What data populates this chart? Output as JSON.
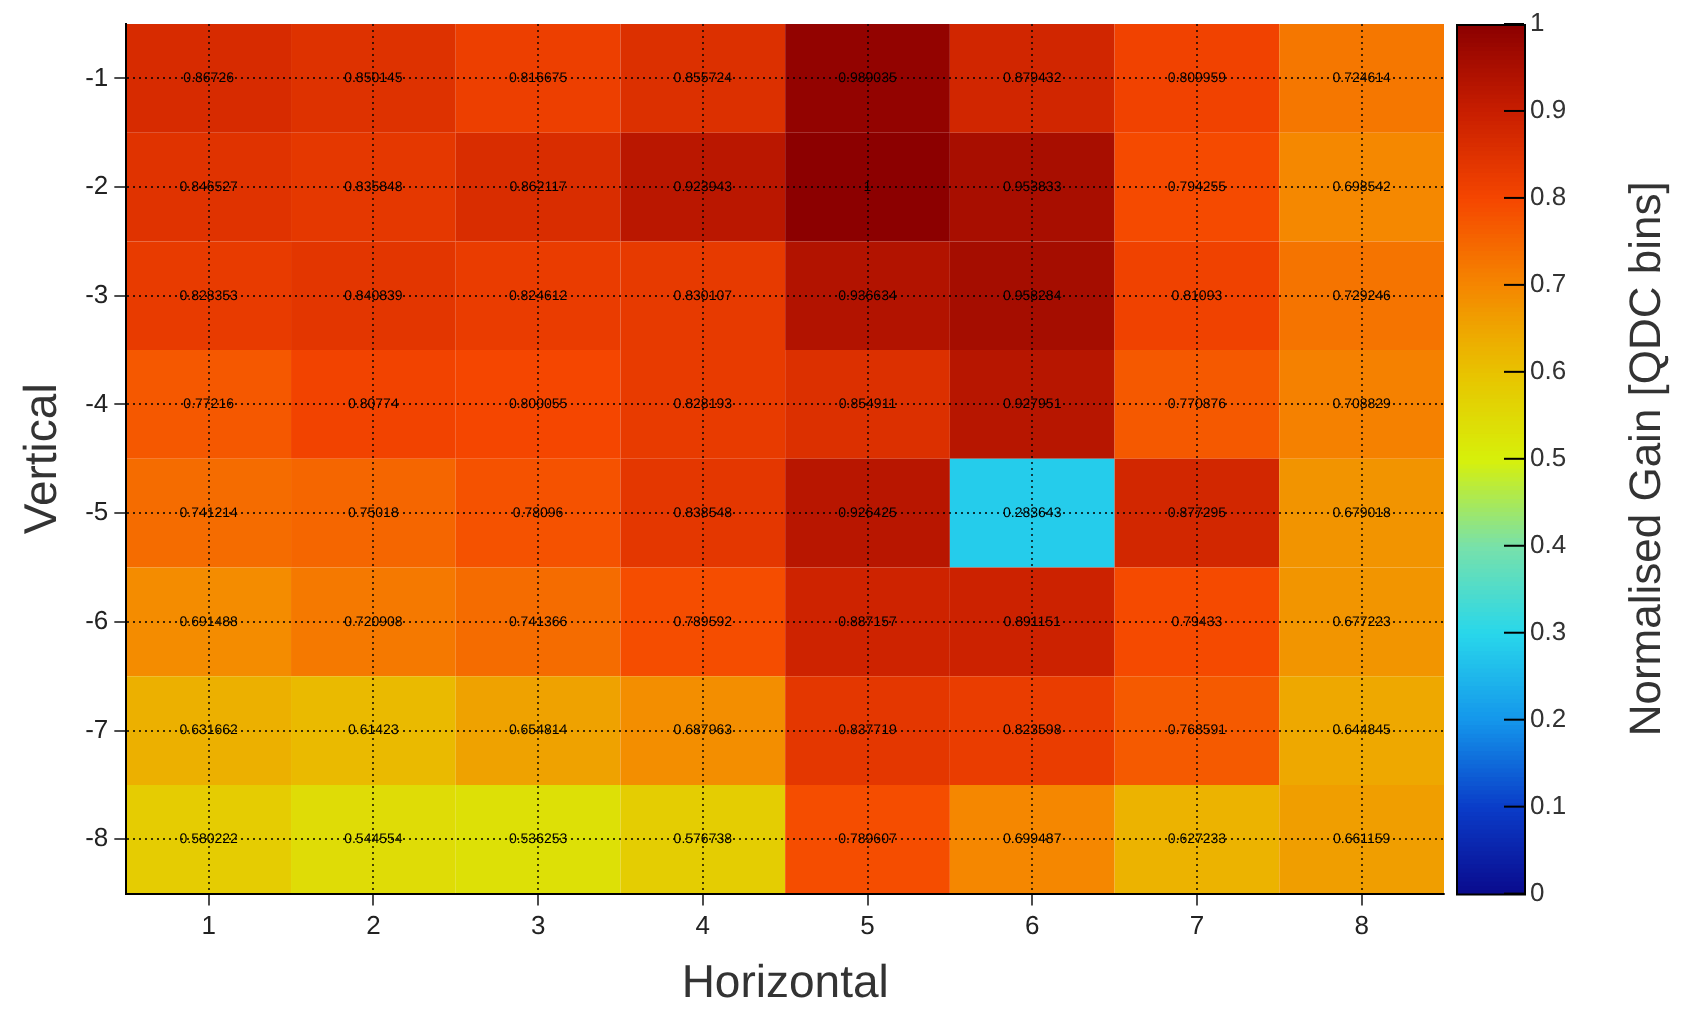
{
  "chart_data": {
    "type": "heatmap",
    "xlabel": "Horizontal",
    "ylabel": "Vertical",
    "clabel": "Normalised Gain [QDC bins]",
    "categories": [
      "1",
      "2",
      "3",
      "4",
      "5",
      "6",
      "7",
      "8"
    ],
    "y_categories": [
      "-1",
      "-2",
      "-3",
      "-4",
      "-5",
      "-6",
      "-7",
      "-8"
    ],
    "cells": [
      [
        0.86726,
        0.850145,
        0.816675,
        0.855724,
        0.989035,
        0.879432,
        0.809959,
        0.724614
      ],
      [
        0.846527,
        0.835848,
        0.862117,
        0.923943,
        1,
        0.953833,
        0.794255,
        0.698542
      ],
      [
        0.828353,
        0.840839,
        0.824612,
        0.830107,
        0.936634,
        0.958284,
        0.81093,
        0.729246
      ],
      [
        0.77216,
        0.80774,
        0.800055,
        0.828193,
        0.854911,
        0.927951,
        0.770876,
        0.708829
      ],
      [
        0.741214,
        0.75018,
        0.78096,
        0.838548,
        0.926425,
        0.283643,
        0.877295,
        0.679018
      ],
      [
        0.691488,
        0.720908,
        0.741366,
        0.789592,
        0.887157,
        0.891151,
        0.79433,
        0.677223
      ],
      [
        0.631662,
        0.61423,
        0.654814,
        0.687963,
        0.837719,
        0.823598,
        0.768591,
        0.644845
      ],
      [
        0.580222,
        0.544554,
        0.536253,
        0.576738,
        0.789607,
        0.699487,
        0.627233,
        0.661159
      ]
    ],
    "clim": [
      0,
      1
    ],
    "cticks": [
      0,
      0.1,
      0.2,
      0.3,
      0.4,
      0.5,
      0.6,
      0.7,
      0.8,
      0.9,
      1
    ],
    "data_labels": true,
    "grid": true
  }
}
